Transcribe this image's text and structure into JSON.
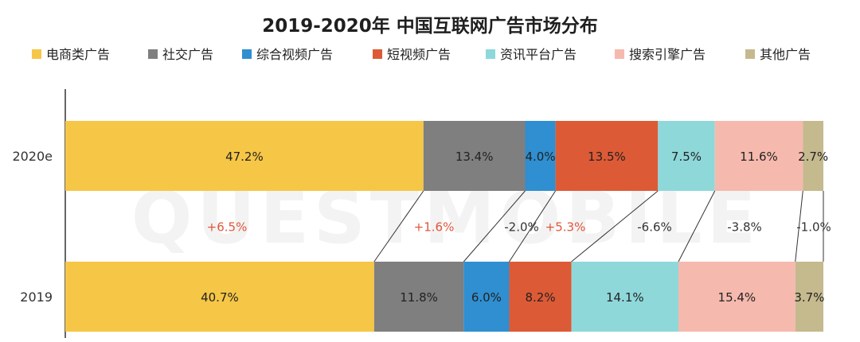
{
  "chart_data": {
    "type": "bar",
    "orientation": "horizontal",
    "stacked": "percent",
    "title": "2019-2020年 中国互联网广告市场分布",
    "categories": [
      "2020e",
      "2019"
    ],
    "series": [
      {
        "name": "电商类广告",
        "color": "#f6c646",
        "values": [
          47.2,
          40.7
        ],
        "change": "+6.5%"
      },
      {
        "name": "社交广告",
        "color": "#7f7f7f",
        "values": [
          13.4,
          11.8
        ],
        "change": "+1.6%"
      },
      {
        "name": "综合视频广告",
        "color": "#2f8fd0",
        "values": [
          4.0,
          6.0
        ],
        "change": "-2.0%"
      },
      {
        "name": "短视频广告",
        "color": "#dd5a36",
        "values": [
          13.5,
          8.2
        ],
        "change": "+5.3%"
      },
      {
        "name": "资讯平台广告",
        "color": "#8ed8da",
        "values": [
          7.5,
          14.1
        ],
        "change": "-6.6%"
      },
      {
        "name": "搜索引擎广告",
        "color": "#f6b9ae",
        "values": [
          11.6,
          15.4
        ],
        "change": "-3.8%"
      },
      {
        "name": "其他广告",
        "color": "#c5b98e",
        "values": [
          2.7,
          3.7
        ],
        "change": "-1.0%"
      }
    ],
    "positive_change_color": "#e0553a",
    "negative_change_color": "#333333",
    "legend_position": "top",
    "grid": false
  },
  "watermark": "QUESTMOBILE"
}
